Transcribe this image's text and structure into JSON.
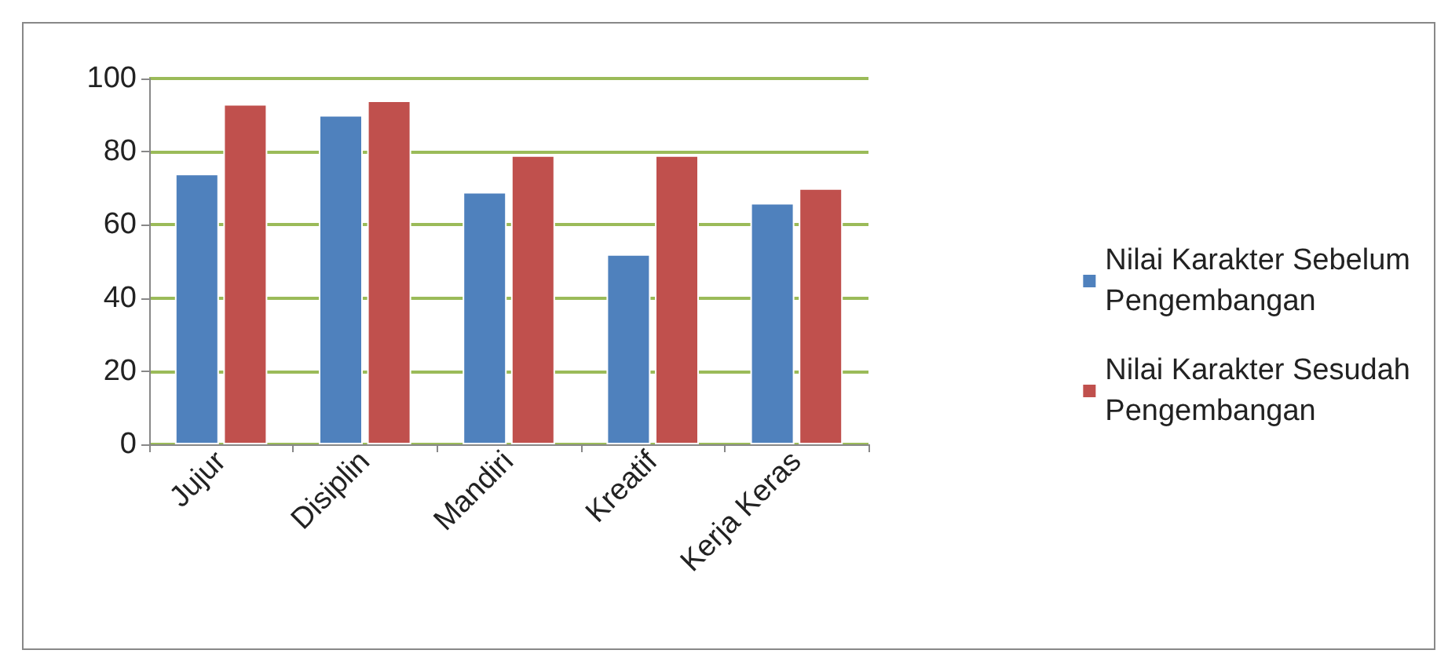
{
  "chart_data": {
    "type": "bar",
    "categories": [
      "Jujur",
      "Disiplin",
      "Mandiri",
      "Kreatif",
      "Kerja Keras"
    ],
    "series": [
      {
        "name": "Nilai Karakter Sebelum Pengembangan",
        "color": "#4f81bd",
        "values": [
          74,
          90,
          69,
          52,
          66
        ]
      },
      {
        "name": "Nilai Karakter Sesudah Pengembangan",
        "color": "#c0504d",
        "values": [
          93,
          94,
          79,
          79,
          70
        ]
      }
    ],
    "ylim": [
      0,
      100
    ],
    "yticks": [
      0,
      20,
      40,
      60,
      80,
      100
    ],
    "grid": true,
    "legend": "right"
  }
}
